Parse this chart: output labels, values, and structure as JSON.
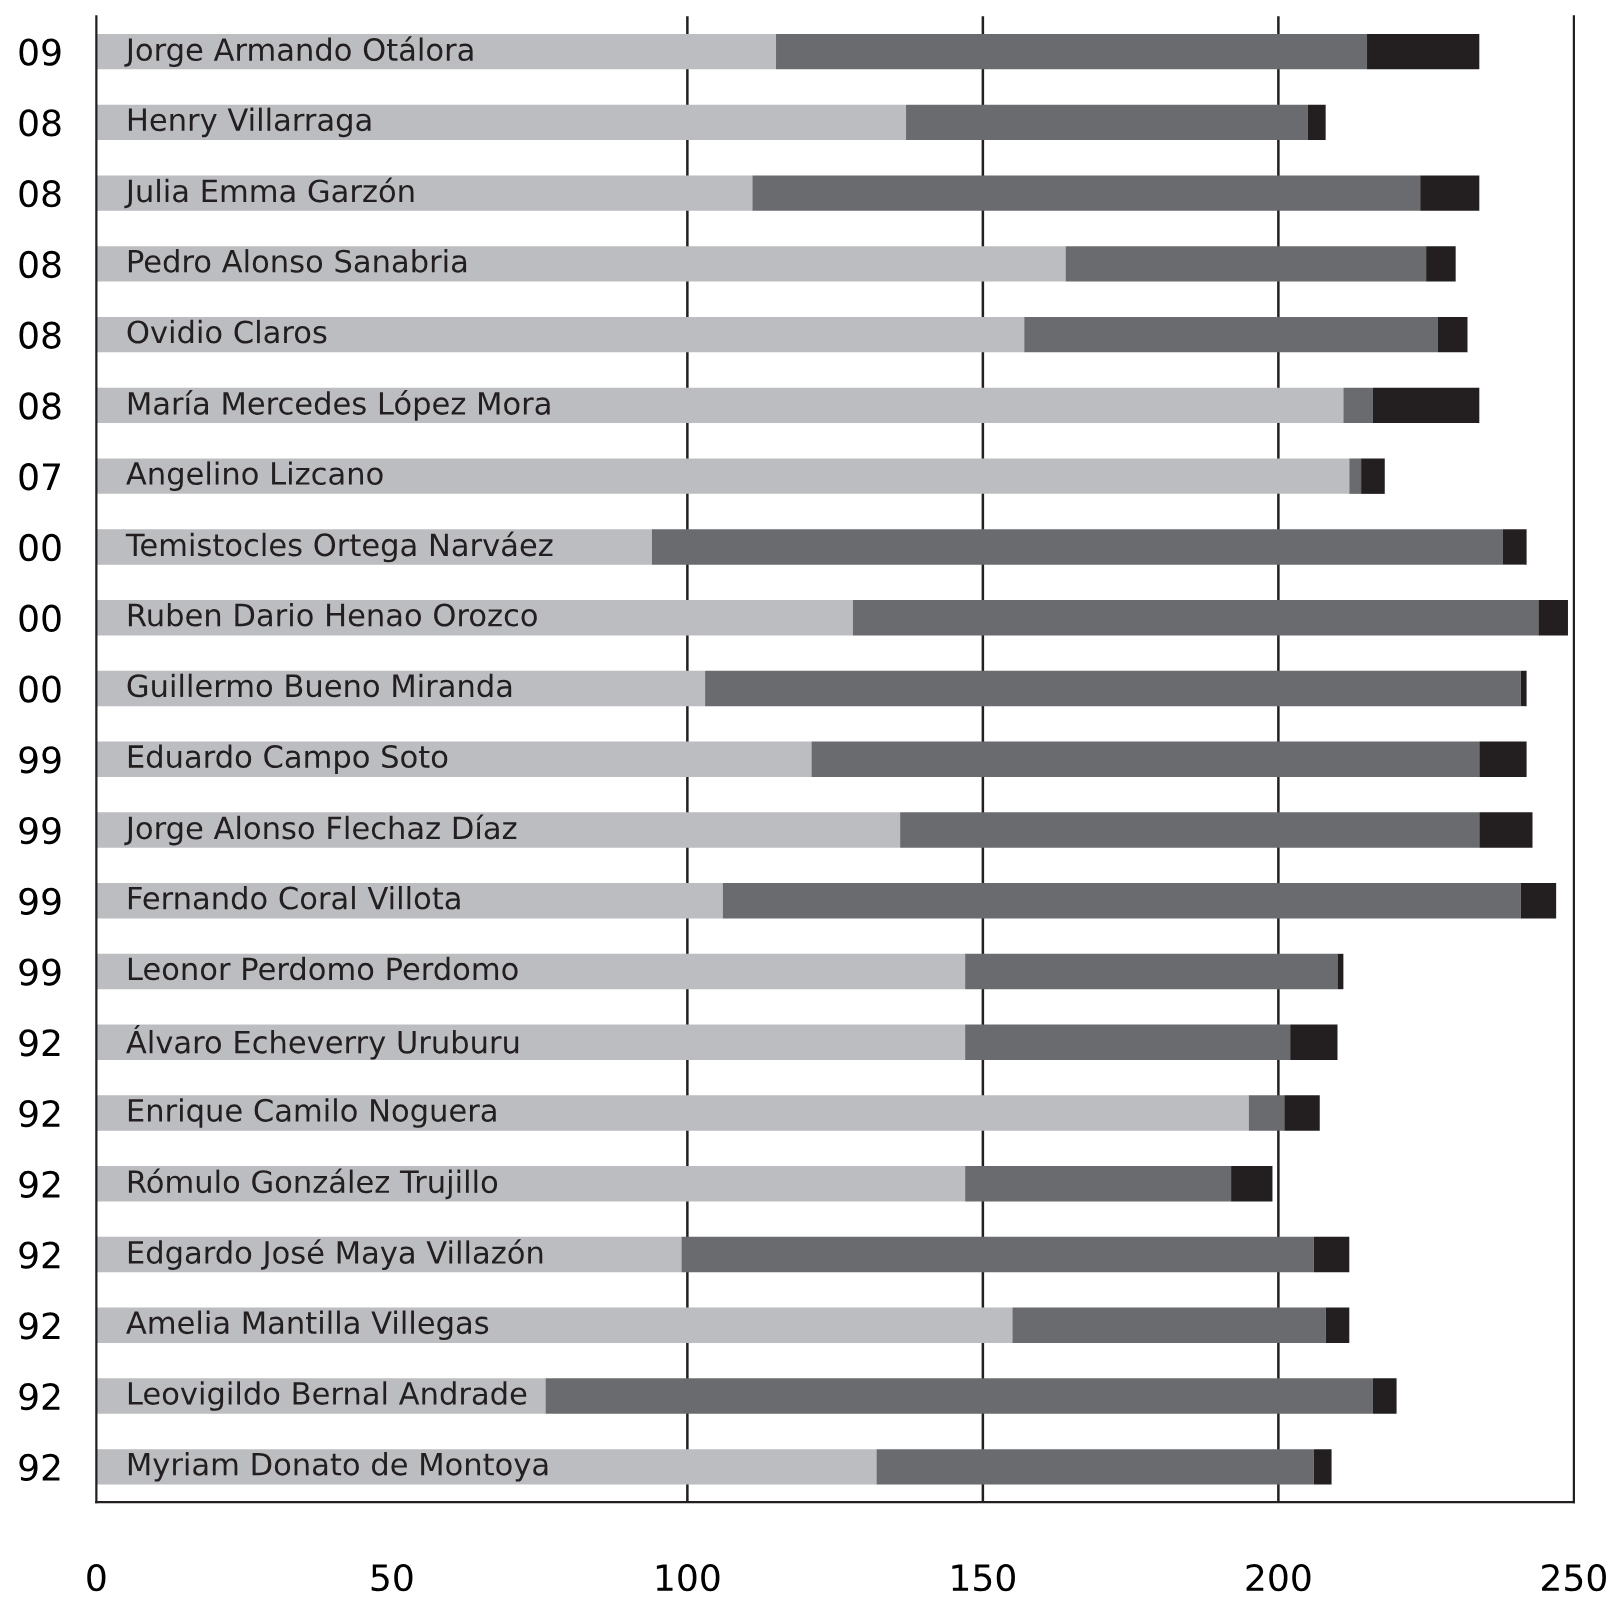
{
  "chart_data": {
    "type": "bar",
    "orientation": "horizontal",
    "stacked": true,
    "categories": [
      "09",
      "08",
      "08",
      "08",
      "08",
      "08",
      "07",
      "00",
      "00",
      "00",
      "99",
      "99",
      "99",
      "99",
      "92",
      "92",
      "92",
      "92",
      "92",
      "92",
      "92"
    ],
    "series": [
      {
        "color": "#bcbdc0",
        "values": [
          115,
          137,
          111,
          164,
          157,
          211,
          212,
          94,
          128,
          103,
          121,
          136,
          106,
          147,
          147,
          195,
          147,
          99,
          155,
          76,
          132
        ],
        "value_labels": [
          "Jorge Armando Otálora",
          "Henry Villarraga",
          "Julia Emma Garzón",
          "Pedro Alonso Sanabria",
          "Ovidio Claros",
          "María Mercedes López Mora",
          "Angelino Lizcano",
          "Temistocles Ortega Narváez",
          "Ruben Dario Henao Orozco",
          "Guillermo Bueno Miranda",
          "Eduardo Campo Soto",
          "Jorge Alonso Flechaz Díaz",
          "Fernando Coral Villota",
          "Leonor Perdomo Perdomo",
          "Álvaro Echeverry Uruburu",
          "Enrique Camilo Noguera",
          "Rómulo González Trujillo",
          "Edgardo José Maya Villazón",
          "Amelia Mantilla Villegas",
          "Leovigildo Bernal Andrade",
          "Myriam Donato de Montoya"
        ]
      },
      {
        "color": "#6a6b6e",
        "values": [
          100,
          68,
          113,
          61,
          70,
          5,
          2,
          144,
          116,
          138,
          113,
          98,
          135,
          63,
          55,
          6,
          45,
          107,
          53,
          140,
          74
        ]
      },
      {
        "color": "#231f20",
        "values": [
          19,
          3,
          10,
          5,
          5,
          18,
          4,
          4,
          5,
          1,
          8,
          9,
          6,
          1,
          8,
          6,
          7,
          6,
          4,
          4,
          3
        ]
      }
    ],
    "xlim": [
      0,
      250
    ],
    "xticks": [
      0,
      50,
      100,
      150,
      200,
      250
    ],
    "ref_lines": [
      {
        "axis": "x",
        "value": 100,
        "color": "#231f20"
      },
      {
        "axis": "x",
        "value": 150,
        "color": "#231f20"
      },
      {
        "axis": "x",
        "value": 200,
        "color": "#231f20"
      }
    ],
    "grid": false,
    "legend": false
  }
}
